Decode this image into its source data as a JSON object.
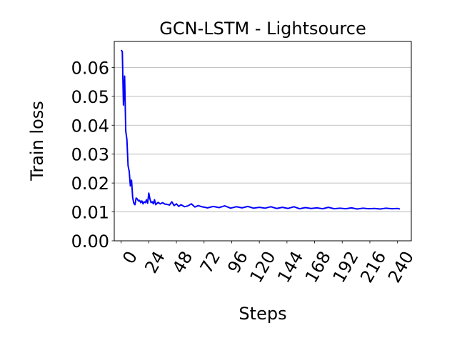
{
  "chart_data": {
    "type": "line",
    "title": "GCN-LSTM - Lightsource",
    "xlabel": "Steps",
    "ylabel": "Train loss",
    "xlim": [
      -6,
      252
    ],
    "ylim": [
      0.0,
      0.069
    ],
    "x_ticks": [
      0,
      24,
      48,
      72,
      96,
      120,
      144,
      168,
      192,
      216,
      240
    ],
    "x_tick_labels": [
      "0",
      "24",
      "48",
      "72",
      "96",
      "120",
      "144",
      "168",
      "192",
      "216",
      "240"
    ],
    "y_ticks": [
      0.0,
      0.01,
      0.02,
      0.03,
      0.04,
      0.05,
      0.06
    ],
    "y_tick_labels": [
      "0.00",
      "0.01",
      "0.02",
      "0.03",
      "0.04",
      "0.05",
      "0.06"
    ],
    "grid": "y-major",
    "x_tick_rotation": 60,
    "series": [
      {
        "color": "#0000ff",
        "x": [
          0,
          1,
          2,
          3,
          4,
          5,
          6,
          7,
          8,
          9,
          10,
          11,
          12,
          13,
          14,
          15,
          16,
          17,
          18,
          19,
          20,
          21,
          22,
          23,
          24,
          25,
          26,
          27,
          28,
          29,
          30,
          32,
          34,
          36,
          38,
          40,
          42,
          44,
          46,
          48,
          50,
          52,
          55,
          58,
          61,
          64,
          67,
          70,
          75,
          80,
          85,
          90,
          95,
          100,
          105,
          110,
          115,
          120,
          125,
          130,
          135,
          140,
          145,
          150,
          155,
          160,
          165,
          170,
          175,
          180,
          185,
          190,
          195,
          200,
          205,
          210,
          215,
          220,
          225,
          230,
          235,
          240,
          242
        ],
        "y": [
          0.066,
          0.0655,
          0.047,
          0.057,
          0.038,
          0.035,
          0.026,
          0.024,
          0.019,
          0.021,
          0.015,
          0.013,
          0.0125,
          0.0148,
          0.0145,
          0.0138,
          0.014,
          0.0132,
          0.0138,
          0.0128,
          0.0135,
          0.0132,
          0.0142,
          0.013,
          0.0165,
          0.0145,
          0.0132,
          0.0135,
          0.0128,
          0.0142,
          0.0125,
          0.0133,
          0.0128,
          0.0132,
          0.0127,
          0.0126,
          0.0124,
          0.0135,
          0.0122,
          0.0128,
          0.0119,
          0.0125,
          0.0118,
          0.0121,
          0.0128,
          0.0117,
          0.0122,
          0.0118,
          0.0114,
          0.0119,
          0.0115,
          0.0121,
          0.0113,
          0.0118,
          0.0114,
          0.0119,
          0.0113,
          0.0116,
          0.0113,
          0.0118,
          0.0112,
          0.0116,
          0.0112,
          0.0118,
          0.0111,
          0.0115,
          0.0112,
          0.0114,
          0.0111,
          0.0116,
          0.0111,
          0.0113,
          0.0111,
          0.0114,
          0.011,
          0.0113,
          0.0111,
          0.0112,
          0.011,
          0.0113,
          0.0111,
          0.0112,
          0.011
        ]
      }
    ]
  }
}
